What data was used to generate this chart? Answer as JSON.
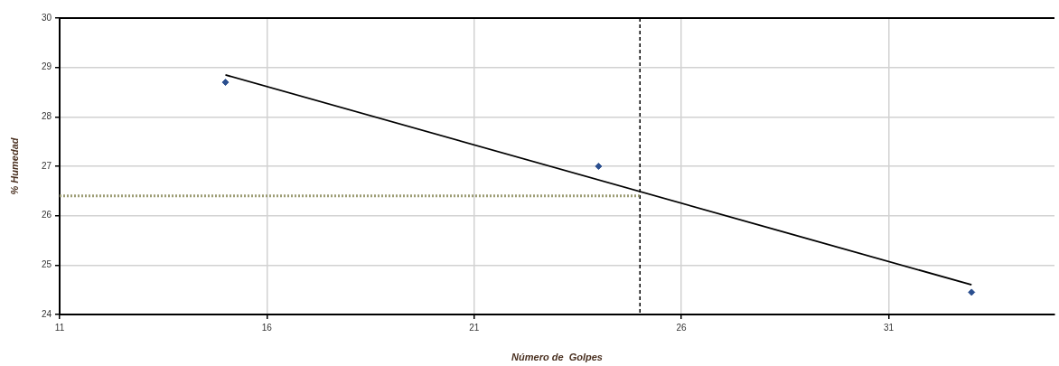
{
  "chart_data": {
    "type": "scatter",
    "xlabel": "Número de  Golpes",
    "ylabel": "% Humedad",
    "xlim": [
      11,
      35
    ],
    "xticks": [
      11,
      16,
      21,
      26,
      31
    ],
    "ylim": [
      24,
      30
    ],
    "yticks": [
      24,
      25,
      26,
      27,
      28,
      29,
      30
    ],
    "grid": true,
    "marker": "diamond",
    "series": [
      {
        "color": "#2b4f8f",
        "x": [
          15,
          24,
          33
        ],
        "values": [
          28.7,
          27,
          24.45
        ]
      },
      {
        "type": "line",
        "color": "#000000",
        "x": [
          15,
          33
        ],
        "values": [
          28.85,
          24.6
        ],
        "marker": "none"
      },
      {
        "type": "line",
        "color": "#9c9c74",
        "x": [
          11,
          25
        ],
        "values": [
          26.4,
          26.4
        ],
        "line_style": "dotted",
        "marker": "none"
      }
    ],
    "ref_lines": [
      {
        "axis": "x",
        "value": 25,
        "color": "#000000",
        "line_style": "dashed"
      }
    ]
  }
}
